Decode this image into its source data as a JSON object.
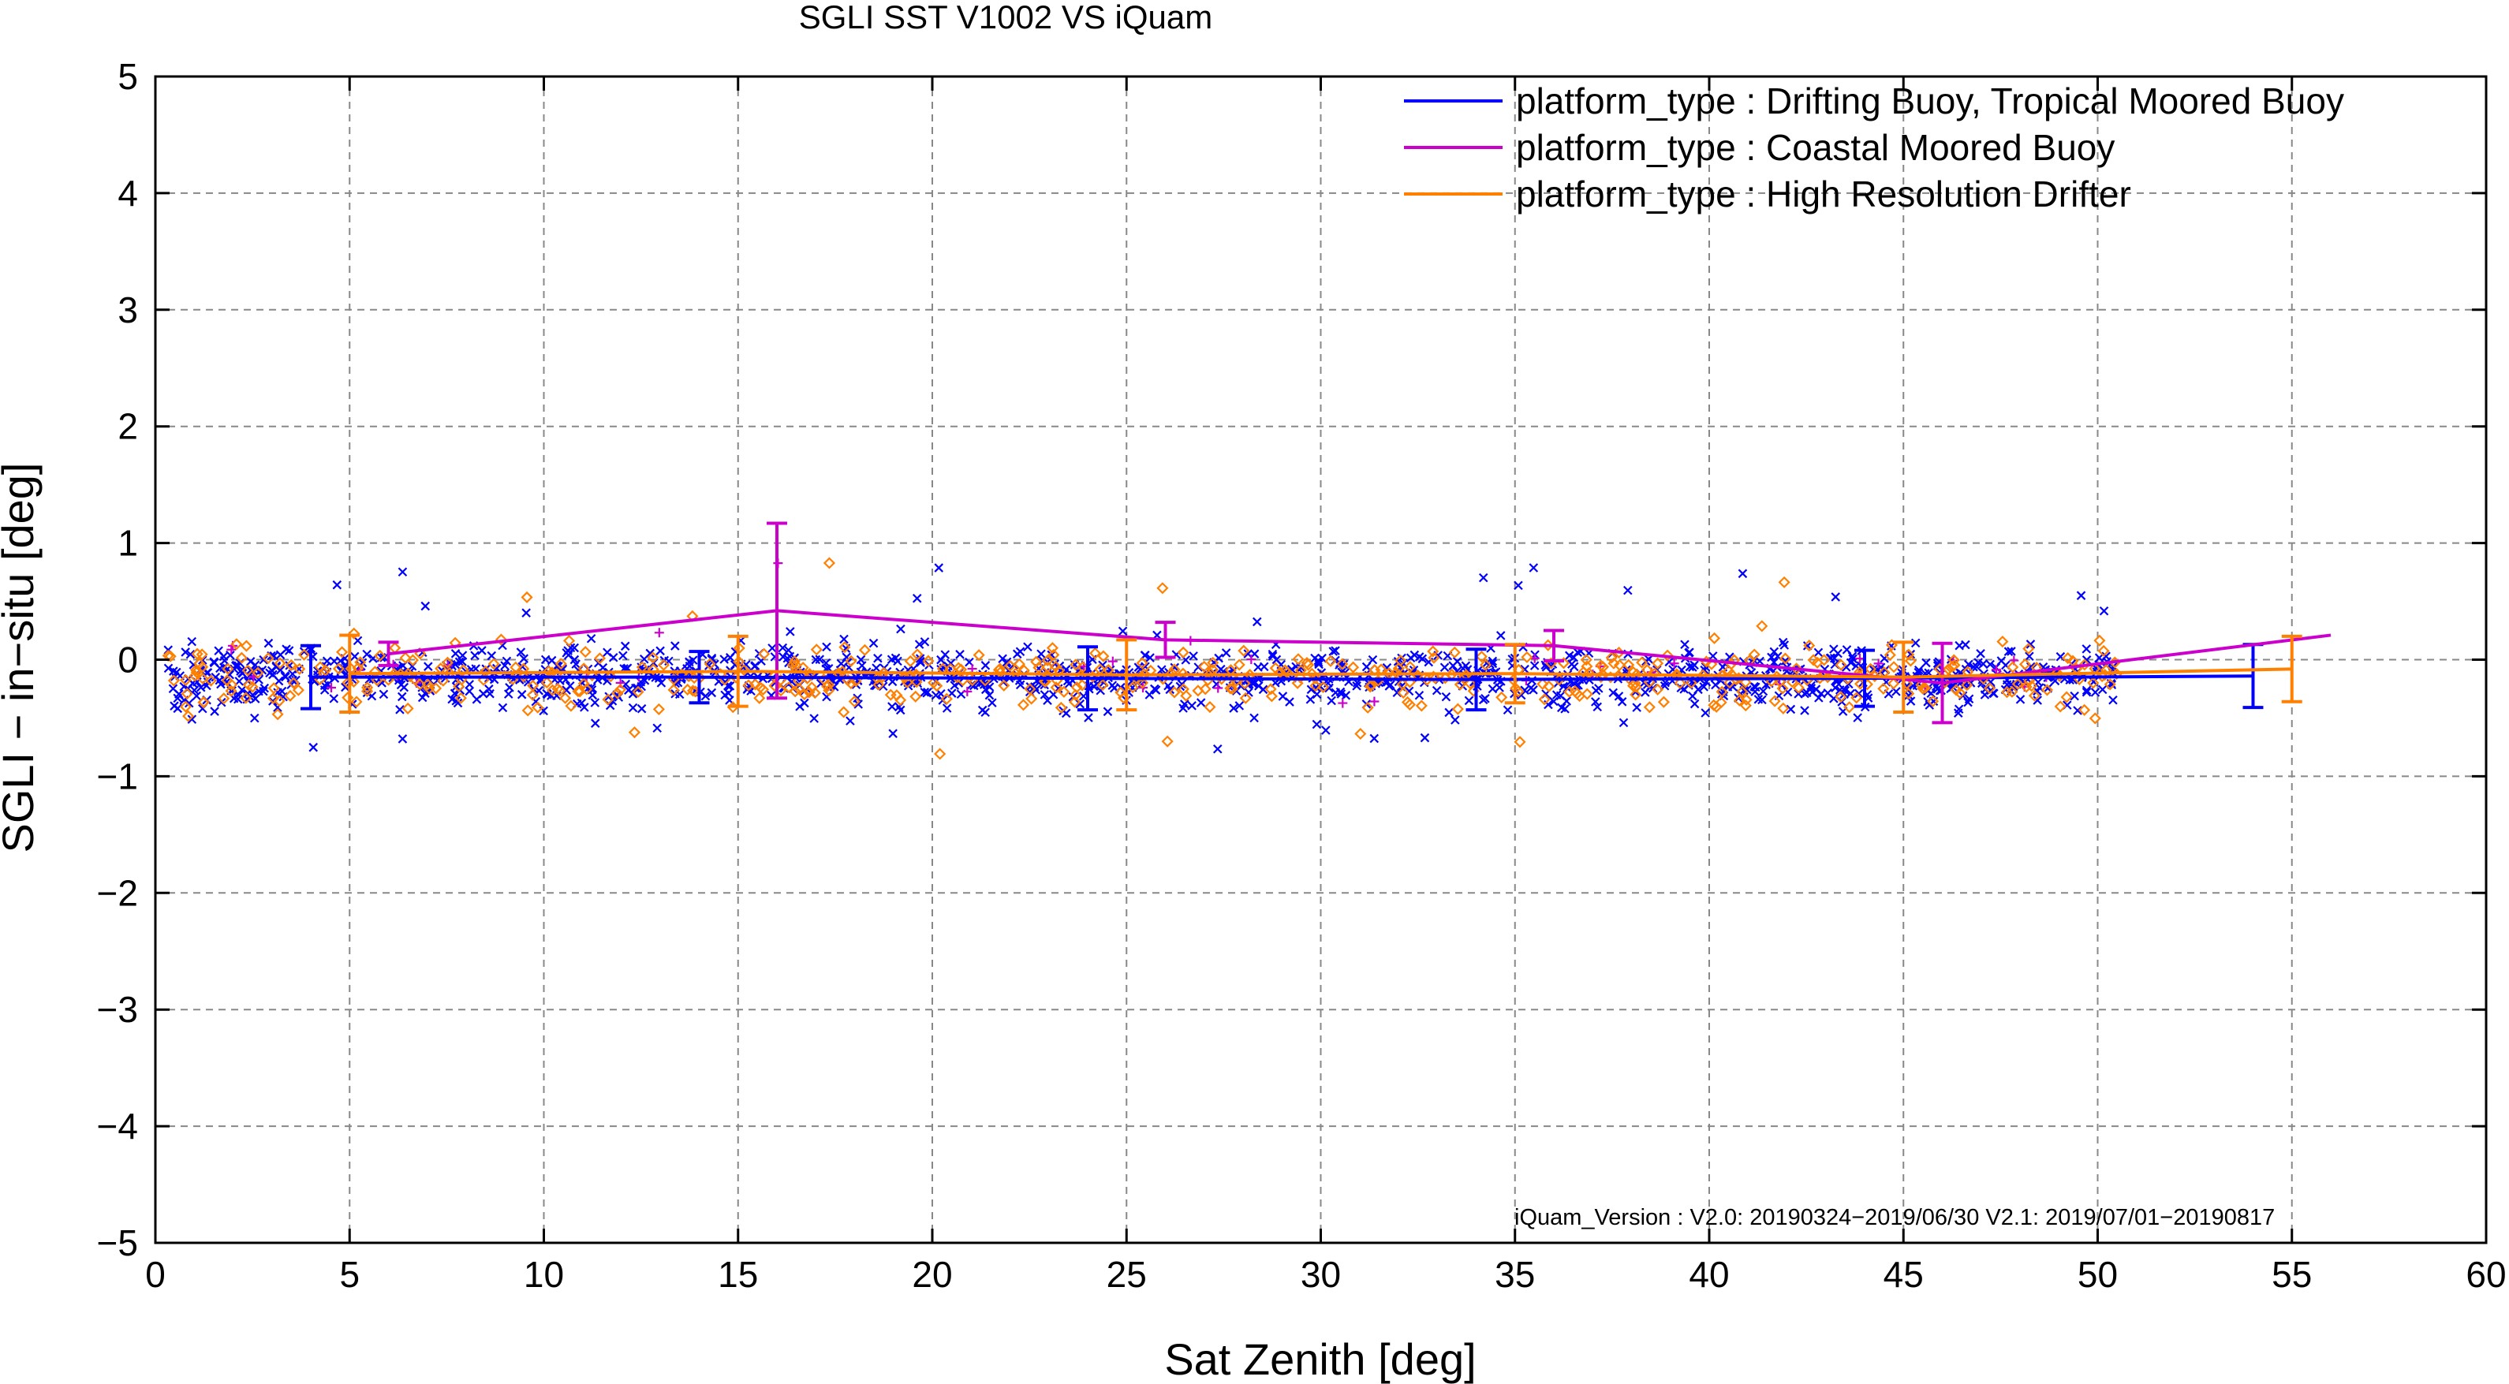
{
  "chart_data": {
    "type": "scatter",
    "title": "SGLI SST V1002 VS iQuam",
    "xlabel": "Sat Zenith [deg]",
    "ylabel": "SGLI − in−situ [deg]",
    "xlim": [
      0,
      60
    ],
    "ylim": [
      -5,
      5
    ],
    "xticks": [
      0,
      5,
      10,
      15,
      20,
      25,
      30,
      35,
      40,
      45,
      50,
      55,
      60
    ],
    "yticks": [
      -5,
      -4,
      -3,
      -2,
      -1,
      0,
      1,
      2,
      3,
      4,
      5
    ],
    "xtick_labels": [
      "0",
      "5",
      "10",
      "15",
      "20",
      "25",
      "30",
      "35",
      "40",
      "45",
      "50",
      "55",
      "60"
    ],
    "ytick_labels": [
      "−5",
      "−4",
      "−3",
      "−2",
      "−1",
      "0",
      "1",
      "2",
      "3",
      "4",
      "5"
    ],
    "grid": true,
    "legend_position": "top-right",
    "series": [
      {
        "name": "platform_type : Drifting Buoy, Tropical Moored Buoy",
        "color": "#0000ff",
        "marker": "cross",
        "scatter_x_range": [
          0.3,
          50.5
        ],
        "scatter_y_center": -0.15,
        "mean_line": {
          "x": [
            4,
            14,
            24,
            34,
            44,
            54
          ],
          "y": [
            -0.15,
            -0.15,
            -0.16,
            -0.17,
            -0.16,
            -0.14
          ],
          "err": [
            0.27,
            0.22,
            0.27,
            0.26,
            0.24,
            0.27
          ]
        }
      },
      {
        "name": "platform_type : Coastal Moored Buoy",
        "color": "#cc00cc",
        "marker": "plus",
        "scatter_x_range": [
          0.5,
          50.5
        ],
        "scatter_y_center": -0.1,
        "mean_line": {
          "x": [
            6,
            16,
            26,
            36,
            46,
            56
          ],
          "y": [
            0.05,
            0.42,
            0.17,
            0.12,
            -0.2,
            0.21
          ],
          "err": [
            0.1,
            0.75,
            0.15,
            0.13,
            0.34,
            0.0
          ]
        }
      },
      {
        "name": "platform_type : High Resolution Drifter",
        "color": "#ff8000",
        "marker": "diamond",
        "scatter_x_range": [
          0.3,
          50.5
        ],
        "scatter_y_center": -0.15,
        "mean_line": {
          "x": [
            5,
            15,
            25,
            35,
            45,
            55
          ],
          "y": [
            -0.12,
            -0.1,
            -0.13,
            -0.12,
            -0.15,
            -0.08
          ],
          "err": [
            0.33,
            0.3,
            0.3,
            0.25,
            0.3,
            0.28
          ]
        }
      }
    ],
    "annotation": "iQuam_Version :  V2.0: 20190324−2019/06/30 V2.1: 2019/07/01−20190817"
  }
}
